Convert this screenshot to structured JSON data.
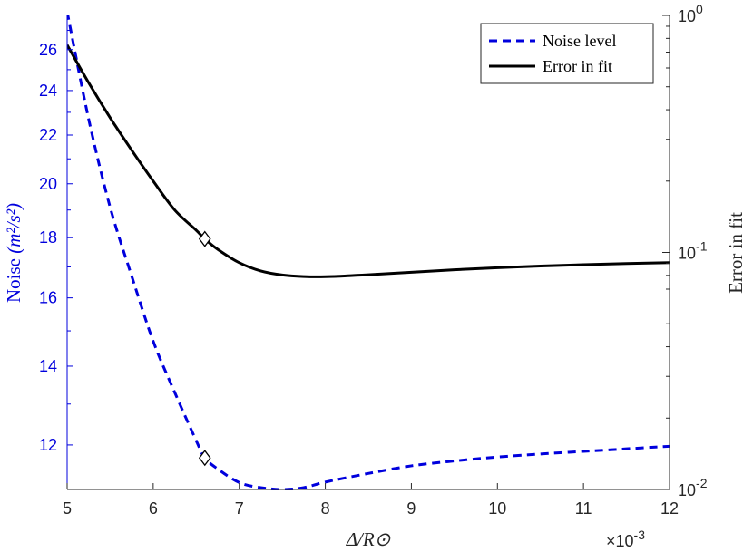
{
  "chart_data": {
    "type": "line",
    "xlabel": "Δ/R⊙",
    "x_exponent_label": "×10",
    "x_exponent_power": "-3",
    "xlim": [
      5,
      12
    ],
    "x_ticks": [
      5,
      6,
      7,
      8,
      9,
      10,
      11,
      12
    ],
    "x_tick_labels": [
      "5",
      "6",
      "7",
      "8",
      "9",
      "10",
      "11",
      "12"
    ],
    "left_axis": {
      "label_prefix": "Noise ",
      "label_math": "(m²/s²)",
      "scale": "log",
      "ylim": [
        11.0,
        27.8
      ],
      "ticks": [
        12,
        14,
        16,
        18,
        20,
        22,
        24,
        26
      ],
      "tick_labels": [
        "12",
        "14",
        "16",
        "18",
        "20",
        "22",
        "24",
        "26"
      ],
      "color": "#0000dd"
    },
    "right_axis": {
      "label": "Error in fit",
      "scale": "log",
      "ylim": [
        0.01,
        1.0
      ],
      "major_ticks": [
        0.01,
        0.1,
        1.0
      ],
      "tick_bases": [
        "10",
        "10",
        "10"
      ],
      "tick_powers": [
        "-2",
        "-1",
        "0"
      ],
      "color": "#000000"
    },
    "series": [
      {
        "name": "Noise level",
        "axis": "left",
        "color": "#0000dd",
        "style": "dashed",
        "x": [
          5.0,
          5.25,
          5.5,
          5.75,
          6.0,
          6.25,
          6.5,
          6.6,
          6.75,
          7.0,
          7.25,
          7.5,
          7.75,
          8.0,
          8.5,
          9.0,
          9.5,
          10.0,
          10.5,
          11.0,
          11.5,
          12.0
        ],
        "y": [
          28.0,
          22.7,
          19.1,
          16.7,
          14.7,
          13.3,
          12.1,
          11.7,
          11.45,
          11.15,
          11.04,
          11.0,
          11.04,
          11.16,
          11.35,
          11.52,
          11.63,
          11.72,
          11.79,
          11.85,
          11.91,
          11.97
        ]
      },
      {
        "name": "Error in fit",
        "axis": "right",
        "color": "#000000",
        "style": "solid",
        "x": [
          5.0,
          5.25,
          5.5,
          5.75,
          6.0,
          6.25,
          6.5,
          6.6,
          6.75,
          7.0,
          7.25,
          7.5,
          7.75,
          8.0,
          8.5,
          9.0,
          9.5,
          10.0,
          10.5,
          11.0,
          11.5,
          12.0
        ],
        "y": [
          0.75,
          0.52,
          0.37,
          0.27,
          0.2,
          0.151,
          0.124,
          0.114,
          0.103,
          0.0905,
          0.0835,
          0.0803,
          0.0791,
          0.079,
          0.0805,
          0.0825,
          0.0845,
          0.0862,
          0.0876,
          0.0888,
          0.0898,
          0.0906
        ]
      }
    ],
    "markers": [
      {
        "series": "Noise level",
        "x": 6.6,
        "y": 11.7,
        "shape": "diamond"
      },
      {
        "series": "Error in fit",
        "x": 6.6,
        "y": 0.114,
        "shape": "diamond"
      }
    ],
    "legend": {
      "placement": "top-right",
      "entries": [
        "Noise level",
        "Error in fit"
      ]
    },
    "grid": false
  }
}
